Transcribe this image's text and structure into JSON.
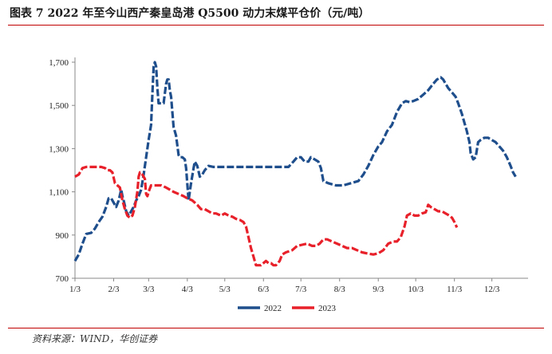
{
  "title": "图表 7   2022 年至今山西产秦皇岛港 Q5500 动力末煤平仓价（元/吨）",
  "source": "资料来源：WIND，华创证券",
  "chart_data": {
    "type": "line",
    "title": "图表 7   2022 年至今山西产秦皇岛港 Q5500 动力末煤平仓价（元/吨）",
    "xlabel": "",
    "ylabel": "",
    "ylim": [
      700,
      1700
    ],
    "yticks": [
      700,
      900,
      1100,
      1300,
      1500,
      1700
    ],
    "ytick_labels": [
      "700",
      "900",
      "1,100",
      "1,300",
      "1,500",
      "1,700"
    ],
    "xlim": [
      1,
      364
    ],
    "xticks": [
      {
        "label": "1/3",
        "day": 1
      },
      {
        "label": "2/3",
        "day": 32
      },
      {
        "label": "3/3",
        "day": 60
      },
      {
        "label": "4/3",
        "day": 91
      },
      {
        "label": "5/3",
        "day": 121
      },
      {
        "label": "6/3",
        "day": 152
      },
      {
        "label": "7/3",
        "day": 182
      },
      {
        "label": "8/3",
        "day": 213
      },
      {
        "label": "9/3",
        "day": 244
      },
      {
        "label": "10/3",
        "day": 274
      },
      {
        "label": "11/3",
        "day": 305
      },
      {
        "label": "12/3",
        "day": 335
      }
    ],
    "grid": false,
    "legend": "bottom",
    "series": [
      {
        "name": "2022",
        "color": "#1f4e8c",
        "points": [
          [
            1,
            780
          ],
          [
            4,
            810
          ],
          [
            7,
            860
          ],
          [
            10,
            905
          ],
          [
            14,
            910
          ],
          [
            17,
            930
          ],
          [
            20,
            960
          ],
          [
            23,
            985
          ],
          [
            26,
            1030
          ],
          [
            28,
            1070
          ],
          [
            30,
            1070
          ],
          [
            32,
            1050
          ],
          [
            34,
            1030
          ],
          [
            36,
            1060
          ],
          [
            38,
            1110
          ],
          [
            39,
            1080
          ],
          [
            40,
            1060
          ],
          [
            42,
            1010
          ],
          [
            44,
            990
          ],
          [
            46,
            1010
          ],
          [
            48,
            1030
          ],
          [
            50,
            1060
          ],
          [
            52,
            1080
          ],
          [
            54,
            1110
          ],
          [
            56,
            1180
          ],
          [
            58,
            1260
          ],
          [
            60,
            1340
          ],
          [
            62,
            1410
          ],
          [
            63,
            1550
          ],
          [
            64,
            1680
          ],
          [
            65,
            1700
          ],
          [
            66,
            1680
          ],
          [
            67,
            1580
          ],
          [
            68,
            1510
          ],
          [
            70,
            1510
          ],
          [
            72,
            1510
          ],
          [
            74,
            1600
          ],
          [
            75,
            1620
          ],
          [
            76,
            1620
          ],
          [
            77,
            1570
          ],
          [
            78,
            1540
          ],
          [
            80,
            1400
          ],
          [
            82,
            1360
          ],
          [
            84,
            1270
          ],
          [
            85,
            1260
          ],
          [
            87,
            1260
          ],
          [
            89,
            1250
          ],
          [
            90,
            1210
          ],
          [
            92,
            1060
          ],
          [
            94,
            1140
          ],
          [
            96,
            1210
          ],
          [
            97,
            1240
          ],
          [
            99,
            1220
          ],
          [
            101,
            1170
          ],
          [
            103,
            1180
          ],
          [
            105,
            1200
          ],
          [
            108,
            1220
          ],
          [
            112,
            1215
          ],
          [
            130,
            1215
          ],
          [
            150,
            1215
          ],
          [
            172,
            1215
          ],
          [
            176,
            1240
          ],
          [
            179,
            1260
          ],
          [
            182,
            1260
          ],
          [
            185,
            1240
          ],
          [
            188,
            1240
          ],
          [
            190,
            1260
          ],
          [
            193,
            1250
          ],
          [
            196,
            1240
          ],
          [
            198,
            1210
          ],
          [
            200,
            1150
          ],
          [
            204,
            1140
          ],
          [
            210,
            1130
          ],
          [
            216,
            1130
          ],
          [
            222,
            1140
          ],
          [
            228,
            1150
          ],
          [
            232,
            1180
          ],
          [
            236,
            1220
          ],
          [
            240,
            1270
          ],
          [
            244,
            1310
          ],
          [
            247,
            1330
          ],
          [
            251,
            1380
          ],
          [
            255,
            1410
          ],
          [
            259,
            1470
          ],
          [
            263,
            1510
          ],
          [
            266,
            1520
          ],
          [
            269,
            1515
          ],
          [
            272,
            1520
          ],
          [
            276,
            1530
          ],
          [
            280,
            1550
          ],
          [
            284,
            1570
          ],
          [
            288,
            1600
          ],
          [
            291,
            1620
          ],
          [
            294,
            1630
          ],
          [
            296,
            1620
          ],
          [
            298,
            1600
          ],
          [
            300,
            1580
          ],
          [
            303,
            1560
          ],
          [
            306,
            1540
          ],
          [
            308,
            1510
          ],
          [
            311,
            1460
          ],
          [
            313,
            1420
          ],
          [
            315,
            1380
          ],
          [
            317,
            1330
          ],
          [
            318,
            1280
          ],
          [
            320,
            1250
          ],
          [
            322,
            1260
          ],
          [
            324,
            1330
          ],
          [
            326,
            1340
          ],
          [
            329,
            1350
          ],
          [
            332,
            1350
          ],
          [
            335,
            1340
          ],
          [
            338,
            1330
          ],
          [
            341,
            1310
          ],
          [
            344,
            1290
          ],
          [
            347,
            1260
          ],
          [
            350,
            1220
          ],
          [
            352,
            1190
          ],
          [
            354,
            1170
          ]
        ]
      },
      {
        "name": "2023",
        "color": "#e8202a",
        "points": [
          [
            1,
            1170
          ],
          [
            4,
            1180
          ],
          [
            7,
            1210
          ],
          [
            10,
            1215
          ],
          [
            16,
            1215
          ],
          [
            22,
            1215
          ],
          [
            25,
            1210
          ],
          [
            27,
            1200
          ],
          [
            29,
            1200
          ],
          [
            31,
            1190
          ],
          [
            33,
            1140
          ],
          [
            35,
            1130
          ],
          [
            37,
            1120
          ],
          [
            39,
            1060
          ],
          [
            41,
            1020
          ],
          [
            43,
            990
          ],
          [
            45,
            980
          ],
          [
            47,
            990
          ],
          [
            49,
            1030
          ],
          [
            51,
            1100
          ],
          [
            52,
            1170
          ],
          [
            53,
            1190
          ],
          [
            55,
            1180
          ],
          [
            57,
            1160
          ],
          [
            58,
            1090
          ],
          [
            59,
            1080
          ],
          [
            60,
            1100
          ],
          [
            62,
            1130
          ],
          [
            65,
            1130
          ],
          [
            70,
            1130
          ],
          [
            74,
            1120
          ],
          [
            77,
            1110
          ],
          [
            80,
            1100
          ],
          [
            84,
            1090
          ],
          [
            88,
            1080
          ],
          [
            91,
            1070
          ],
          [
            95,
            1060
          ],
          [
            99,
            1040
          ],
          [
            102,
            1020
          ],
          [
            105,
            1020
          ],
          [
            108,
            1010
          ],
          [
            111,
            1000
          ],
          [
            114,
            1000
          ],
          [
            118,
            990
          ],
          [
            121,
            1000
          ],
          [
            124,
            990
          ],
          [
            127,
            985
          ],
          [
            130,
            975
          ],
          [
            133,
            970
          ],
          [
            136,
            960
          ],
          [
            138,
            940
          ],
          [
            140,
            890
          ],
          [
            142,
            840
          ],
          [
            144,
            800
          ],
          [
            146,
            760
          ],
          [
            150,
            760
          ],
          [
            154,
            780
          ],
          [
            156,
            770
          ],
          [
            158,
            770
          ],
          [
            160,
            760
          ],
          [
            162,
            760
          ],
          [
            165,
            780
          ],
          [
            167,
            810
          ],
          [
            170,
            820
          ],
          [
            175,
            830
          ],
          [
            179,
            850
          ],
          [
            183,
            855
          ],
          [
            187,
            860
          ],
          [
            191,
            850
          ],
          [
            194,
            850
          ],
          [
            197,
            860
          ],
          [
            200,
            880
          ],
          [
            203,
            880
          ],
          [
            207,
            870
          ],
          [
            211,
            860
          ],
          [
            215,
            850
          ],
          [
            219,
            840
          ],
          [
            223,
            840
          ],
          [
            227,
            830
          ],
          [
            231,
            820
          ],
          [
            235,
            815
          ],
          [
            240,
            810
          ],
          [
            244,
            815
          ],
          [
            248,
            830
          ],
          [
            252,
            860
          ],
          [
            256,
            870
          ],
          [
            259,
            870
          ],
          [
            262,
            890
          ],
          [
            265,
            940
          ],
          [
            267,
            990
          ],
          [
            270,
            1000
          ],
          [
            273,
            990
          ],
          [
            276,
            990
          ],
          [
            279,
            1000
          ],
          [
            282,
            1005
          ],
          [
            284,
            1040
          ],
          [
            286,
            1030
          ],
          [
            289,
            1020
          ],
          [
            292,
            1010
          ],
          [
            295,
            1010
          ],
          [
            298,
            1000
          ],
          [
            301,
            990
          ],
          [
            303,
            980
          ],
          [
            305,
            960
          ],
          [
            307,
            935
          ]
        ]
      }
    ]
  }
}
